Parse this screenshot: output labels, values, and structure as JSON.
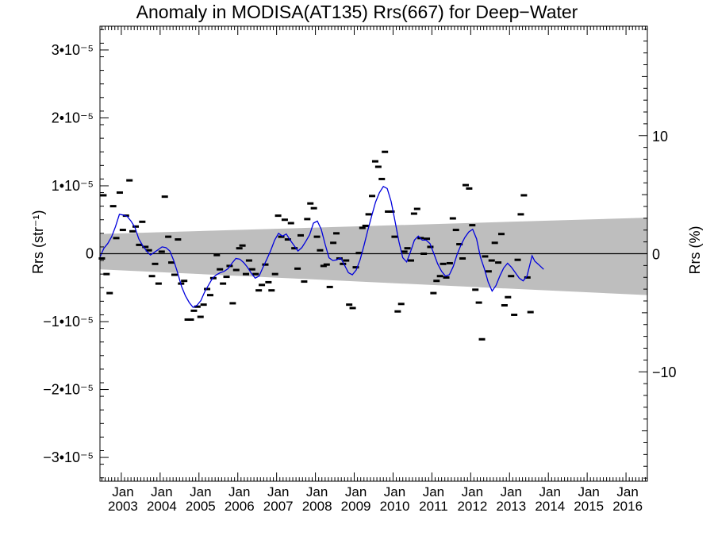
{
  "chart_data": {
    "type": "line",
    "title": "Anomaly in MODISA(AT135) Rrs(667) for Deep−Water",
    "ylabel": "Rrs (str⁻¹)",
    "ylabel_right": "Rrs (%)",
    "ylim": [
      -3.35e-05,
      3.35e-05
    ],
    "xlim": [
      2002.45,
      2016.55
    ],
    "yticks": [
      {
        "value": 3e-05,
        "label": "3•10⁻⁵"
      },
      {
        "value": 2e-05,
        "label": "2•10⁻⁵"
      },
      {
        "value": 1e-05,
        "label": "1•10⁻⁵"
      },
      {
        "value": 0,
        "label": "0"
      },
      {
        "value": -1e-05,
        "label": "−1•10⁻⁵"
      },
      {
        "value": -2e-05,
        "label": "−2•10⁻⁵"
      },
      {
        "value": -3e-05,
        "label": "−3•10⁻⁵"
      }
    ],
    "right_ticks": [
      {
        "value": 10,
        "label": "10"
      },
      {
        "value": 0,
        "label": "0"
      },
      {
        "value": -10,
        "label": "−10"
      }
    ],
    "right_scale_percent_per_unit": 575000,
    "xticks": [
      {
        "value": 2003,
        "month": "Jan",
        "year": "2003"
      },
      {
        "value": 2004,
        "month": "Jan",
        "year": "2004"
      },
      {
        "value": 2005,
        "month": "Jan",
        "year": "2005"
      },
      {
        "value": 2006,
        "month": "Jan",
        "year": "2006"
      },
      {
        "value": 2007,
        "month": "Jan",
        "year": "2007"
      },
      {
        "value": 2008,
        "month": "Jan",
        "year": "2008"
      },
      {
        "value": 2009,
        "month": "Jan",
        "year": "2009"
      },
      {
        "value": 2010,
        "month": "Jan",
        "year": "2010"
      },
      {
        "value": 2011,
        "month": "Jan",
        "year": "2011"
      },
      {
        "value": 2012,
        "month": "Jan",
        "year": "2012"
      },
      {
        "value": 2013,
        "month": "Jan",
        "year": "2013"
      },
      {
        "value": 2014,
        "month": "Jan",
        "year": "2014"
      },
      {
        "value": 2015,
        "month": "Jan",
        "year": "2015"
      },
      {
        "value": 2016,
        "month": "Jan",
        "year": "2016"
      }
    ],
    "band": {
      "color": "#bebebe",
      "upper": [
        [
          2002.45,
          2.9e-06
        ],
        [
          2016.55,
          5.3e-06
        ]
      ],
      "lower": [
        [
          2002.45,
          -2.3e-06
        ],
        [
          2016.55,
          -6.1e-06
        ]
      ]
    },
    "zero_line": true,
    "series": [
      {
        "style": "marker",
        "color": "#000000",
        "points": [
          [
            2002.5,
            -7e-07
          ],
          [
            2002.54,
            8.6e-06
          ],
          [
            2002.62,
            -3e-06
          ],
          [
            2002.7,
            -5.8e-06
          ],
          [
            2002.79,
            7e-06
          ],
          [
            2002.87,
            2.3e-06
          ],
          [
            2002.96,
            9e-06
          ],
          [
            2003.04,
            3.5e-06
          ],
          [
            2003.12,
            5.6e-06
          ],
          [
            2003.21,
            1.08e-05
          ],
          [
            2003.29,
            3.3e-06
          ],
          [
            2003.37,
            4e-06
          ],
          [
            2003.46,
            1.3e-06
          ],
          [
            2003.54,
            4.7e-06
          ],
          [
            2003.62,
            1e-06
          ],
          [
            2003.71,
            5e-07
          ],
          [
            2003.79,
            -3.3e-06
          ],
          [
            2003.87,
            -1.5e-06
          ],
          [
            2003.96,
            -4.4e-06
          ],
          [
            2004.04,
            3e-07
          ],
          [
            2004.12,
            8.4e-06
          ],
          [
            2004.21,
            2.5e-06
          ],
          [
            2004.29,
            -1.3e-06
          ],
          [
            2004.37,
            -3.1e-06
          ],
          [
            2004.46,
            2.1e-06
          ],
          [
            2004.54,
            -4.4e-06
          ],
          [
            2004.62,
            -4e-06
          ],
          [
            2004.71,
            -9.7e-06
          ],
          [
            2004.79,
            -9.7e-06
          ],
          [
            2004.87,
            -8.4e-06
          ],
          [
            2004.96,
            -7.8e-06
          ],
          [
            2005.04,
            -9.3e-06
          ],
          [
            2005.12,
            -7.5e-06
          ],
          [
            2005.21,
            -5.2e-06
          ],
          [
            2005.29,
            -6.1e-06
          ],
          [
            2005.37,
            -3.6e-06
          ],
          [
            2005.46,
            -2e-07
          ],
          [
            2005.54,
            -2.3e-06
          ],
          [
            2005.62,
            -4.4e-06
          ],
          [
            2005.71,
            -3.4e-06
          ],
          [
            2005.79,
            -1.8e-06
          ],
          [
            2005.87,
            -7.3e-06
          ],
          [
            2005.96,
            -2.4e-06
          ],
          [
            2006.04,
            8e-07
          ],
          [
            2006.12,
            1.2e-06
          ],
          [
            2006.21,
            -3e-06
          ],
          [
            2006.29,
            -1e-06
          ],
          [
            2006.37,
            -2.3e-06
          ],
          [
            2006.46,
            -3e-06
          ],
          [
            2006.54,
            -5.4e-06
          ],
          [
            2006.62,
            -4.6e-06
          ],
          [
            2006.71,
            -1.6e-06
          ],
          [
            2006.79,
            -4.2e-06
          ],
          [
            2006.87,
            -5.4e-06
          ],
          [
            2006.96,
            -3e-06
          ],
          [
            2007.04,
            5.6e-06
          ],
          [
            2007.12,
            2.5e-06
          ],
          [
            2007.21,
            5e-06
          ],
          [
            2007.29,
            2.1e-06
          ],
          [
            2007.37,
            4.5e-06
          ],
          [
            2007.46,
            8e-07
          ],
          [
            2007.54,
            -2.2e-06
          ],
          [
            2007.62,
            2.7e-06
          ],
          [
            2007.71,
            -4.1e-06
          ],
          [
            2007.79,
            5.1e-06
          ],
          [
            2007.87,
            7.4e-06
          ],
          [
            2007.96,
            6.7e-06
          ],
          [
            2008.04,
            2.5e-06
          ],
          [
            2008.12,
            5e-07
          ],
          [
            2008.21,
            -1.8e-06
          ],
          [
            2008.29,
            -1.6e-06
          ],
          [
            2008.37,
            -4.9e-06
          ],
          [
            2008.46,
            1.6e-06
          ],
          [
            2008.54,
            3e-06
          ],
          [
            2008.62,
            -7e-07
          ],
          [
            2008.71,
            -1.5e-06
          ],
          [
            2008.79,
            -1e-06
          ],
          [
            2008.87,
            -7.5e-06
          ],
          [
            2008.96,
            -8e-06
          ],
          [
            2009.04,
            -2e-06
          ],
          [
            2009.12,
            1e-07
          ],
          [
            2009.21,
            3.8e-06
          ],
          [
            2009.29,
            4.1e-06
          ],
          [
            2009.37,
            5.8e-06
          ],
          [
            2009.46,
            8.5e-06
          ],
          [
            2009.54,
            1.36e-05
          ],
          [
            2009.62,
            1.28e-05
          ],
          [
            2009.71,
            1.1e-05
          ],
          [
            2009.79,
            1.5e-05
          ],
          [
            2009.87,
            6.2e-06
          ],
          [
            2009.96,
            6.2e-06
          ],
          [
            2010.04,
            2.5e-06
          ],
          [
            2010.12,
            -8.5e-06
          ],
          [
            2010.21,
            -7.4e-06
          ],
          [
            2010.29,
            3e-07
          ],
          [
            2010.37,
            8e-07
          ],
          [
            2010.46,
            -1e-06
          ],
          [
            2010.54,
            5.9e-06
          ],
          [
            2010.62,
            6.6e-06
          ],
          [
            2010.71,
            2.3e-06
          ],
          [
            2010.79,
            0.0
          ],
          [
            2010.87,
            2.2e-06
          ],
          [
            2010.96,
            1e-06
          ],
          [
            2011.04,
            -5.8e-06
          ],
          [
            2011.12,
            -4e-06
          ],
          [
            2011.21,
            -3.3e-06
          ],
          [
            2011.29,
            -1.5e-06
          ],
          [
            2011.37,
            -3.5e-06
          ],
          [
            2011.46,
            -1.4e-06
          ],
          [
            2011.54,
            5.2e-06
          ],
          [
            2011.62,
            3.5e-06
          ],
          [
            2011.71,
            1.4e-06
          ],
          [
            2011.79,
            -7e-07
          ],
          [
            2011.87,
            1.01e-05
          ],
          [
            2011.96,
            9.6e-06
          ],
          [
            2012.04,
            4.2e-06
          ],
          [
            2012.12,
            -5.3e-06
          ],
          [
            2012.21,
            -7.2e-06
          ],
          [
            2012.29,
            -1.26e-05
          ],
          [
            2012.37,
            -4e-07
          ],
          [
            2012.46,
            -2.6e-06
          ],
          [
            2012.54,
            -1e-06
          ],
          [
            2012.62,
            1.6e-06
          ],
          [
            2012.71,
            -1.3e-06
          ],
          [
            2012.79,
            2.9e-06
          ],
          [
            2012.87,
            -7.6e-06
          ],
          [
            2012.96,
            -6.4e-06
          ],
          [
            2013.04,
            -3.3e-06
          ],
          [
            2013.12,
            -9e-06
          ],
          [
            2013.21,
            -9e-07
          ],
          [
            2013.29,
            5.8e-06
          ],
          [
            2013.37,
            8.6e-06
          ],
          [
            2013.46,
            -3.5e-06
          ],
          [
            2013.54,
            -8.6e-06
          ]
        ]
      },
      {
        "style": "line",
        "color": "#0000dd",
        "points": [
          [
            2002.45,
            -5e-07
          ],
          [
            2002.55,
            8e-07
          ],
          [
            2002.65,
            1.5e-06
          ],
          [
            2002.75,
            2.5e-06
          ],
          [
            2002.85,
            4e-06
          ],
          [
            2002.95,
            5.8e-06
          ],
          [
            2003.05,
            5.7e-06
          ],
          [
            2003.15,
            5.5e-06
          ],
          [
            2003.25,
            4.8e-06
          ],
          [
            2003.35,
            3.9e-06
          ],
          [
            2003.45,
            2.2e-06
          ],
          [
            2003.55,
            1.2e-06
          ],
          [
            2003.65,
            4e-07
          ],
          [
            2003.75,
            -2e-07
          ],
          [
            2003.85,
            2e-07
          ],
          [
            2003.95,
            6e-07
          ],
          [
            2004.05,
            1e-06
          ],
          [
            2004.15,
            9e-07
          ],
          [
            2004.25,
            4e-07
          ],
          [
            2004.35,
            -1e-06
          ],
          [
            2004.45,
            -2.8e-06
          ],
          [
            2004.55,
            -4.8e-06
          ],
          [
            2004.65,
            -6.2e-06
          ],
          [
            2004.75,
            -7.2e-06
          ],
          [
            2004.85,
            -7.9e-06
          ],
          [
            2004.95,
            -7.6e-06
          ],
          [
            2005.05,
            -6.9e-06
          ],
          [
            2005.15,
            -5.6e-06
          ],
          [
            2005.25,
            -4.6e-06
          ],
          [
            2005.35,
            -3.6e-06
          ],
          [
            2005.45,
            -3.1e-06
          ],
          [
            2005.55,
            -2.8e-06
          ],
          [
            2005.65,
            -2.6e-06
          ],
          [
            2005.75,
            -2.2e-06
          ],
          [
            2005.85,
            -1.4e-06
          ],
          [
            2005.95,
            -7e-07
          ],
          [
            2006.05,
            -8e-07
          ],
          [
            2006.15,
            -1.3e-06
          ],
          [
            2006.25,
            -2e-06
          ],
          [
            2006.35,
            -2.9e-06
          ],
          [
            2006.45,
            -3.6e-06
          ],
          [
            2006.55,
            -3.3e-06
          ],
          [
            2006.65,
            -2e-06
          ],
          [
            2006.75,
            -8e-07
          ],
          [
            2006.85,
            5e-07
          ],
          [
            2006.95,
            2e-06
          ],
          [
            2007.05,
            3e-06
          ],
          [
            2007.15,
            2.6e-06
          ],
          [
            2007.25,
            2.9e-06
          ],
          [
            2007.35,
            2e-06
          ],
          [
            2007.45,
            1.2e-06
          ],
          [
            2007.55,
            4e-07
          ],
          [
            2007.65,
            9e-07
          ],
          [
            2007.75,
            1.8e-06
          ],
          [
            2007.85,
            2.8e-06
          ],
          [
            2007.95,
            4.5e-06
          ],
          [
            2008.05,
            4.8e-06
          ],
          [
            2008.15,
            3.6e-06
          ],
          [
            2008.25,
            1.4e-06
          ],
          [
            2008.35,
            -6e-07
          ],
          [
            2008.45,
            -1e-06
          ],
          [
            2008.55,
            -9e-07
          ],
          [
            2008.65,
            -6e-07
          ],
          [
            2008.75,
            -1.7e-06
          ],
          [
            2008.85,
            -2.8e-06
          ],
          [
            2008.95,
            -3.1e-06
          ],
          [
            2009.05,
            -2.4e-06
          ],
          [
            2009.15,
            -9e-07
          ],
          [
            2009.25,
            1.2e-06
          ],
          [
            2009.35,
            3.5e-06
          ],
          [
            2009.45,
            5.6e-06
          ],
          [
            2009.55,
            7.6e-06
          ],
          [
            2009.65,
            9e-06
          ],
          [
            2009.75,
            9.9e-06
          ],
          [
            2009.85,
            9.6e-06
          ],
          [
            2009.95,
            7.7e-06
          ],
          [
            2010.05,
            4.8e-06
          ],
          [
            2010.15,
            1.8e-06
          ],
          [
            2010.25,
            -6e-07
          ],
          [
            2010.35,
            -1.2e-06
          ],
          [
            2010.45,
            3e-07
          ],
          [
            2010.55,
            2e-06
          ],
          [
            2010.65,
            2.6e-06
          ],
          [
            2010.75,
            2e-06
          ],
          [
            2010.85,
            2e-06
          ],
          [
            2010.95,
            1.5e-06
          ],
          [
            2011.05,
            0.0
          ],
          [
            2011.15,
            -1.5e-06
          ],
          [
            2011.25,
            -2.6e-06
          ],
          [
            2011.35,
            -3.3e-06
          ],
          [
            2011.45,
            -3.1e-06
          ],
          [
            2011.55,
            -1.9e-06
          ],
          [
            2011.65,
            -1e-07
          ],
          [
            2011.75,
            1.3e-06
          ],
          [
            2011.85,
            2.4e-06
          ],
          [
            2011.95,
            3.2e-06
          ],
          [
            2012.05,
            3.6e-06
          ],
          [
            2012.15,
            2.2e-06
          ],
          [
            2012.25,
            -5e-07
          ],
          [
            2012.35,
            -2.2e-06
          ],
          [
            2012.45,
            -4.2e-06
          ],
          [
            2012.55,
            -5.5e-06
          ],
          [
            2012.65,
            -4.7e-06
          ],
          [
            2012.75,
            -3.3e-06
          ],
          [
            2012.85,
            -2.1e-06
          ],
          [
            2012.95,
            -1.4e-06
          ],
          [
            2013.05,
            -2e-06
          ],
          [
            2013.15,
            -2.8e-06
          ],
          [
            2013.25,
            -3.6e-06
          ],
          [
            2013.35,
            -4e-06
          ],
          [
            2013.45,
            -3.3e-06
          ],
          [
            2013.55,
            -1e-06
          ],
          [
            2013.58,
            -3e-07
          ],
          [
            2013.65,
            -1.1e-06
          ],
          [
            2013.75,
            -1.6e-06
          ],
          [
            2013.88,
            -2.3e-06
          ]
        ]
      }
    ],
    "grid": false,
    "legend": "none"
  }
}
